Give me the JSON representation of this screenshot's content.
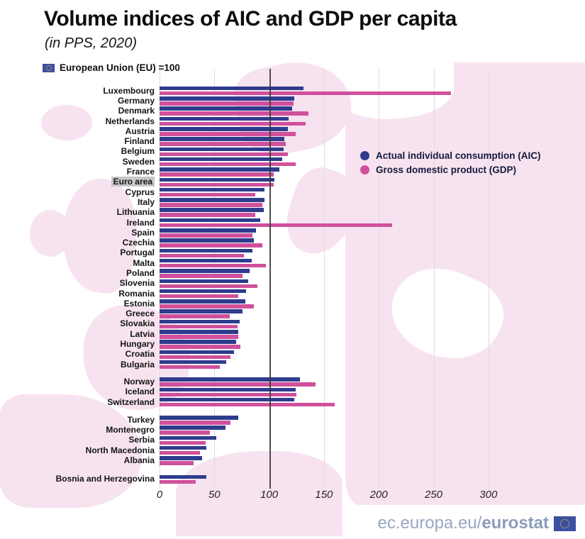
{
  "title": "Volume indices of AIC and GDP per capita",
  "subtitle": "(in PPS, 2020)",
  "eu_note": "European Union (EU) =100",
  "footer": {
    "url_prefix": "ec.europa.eu/",
    "url_bold": "eurostat"
  },
  "colors": {
    "aic_bar": "#2e3c8d",
    "gdp_bar": "#d0509c",
    "grid_light": "#dddcdc",
    "grid_dark_100": "#3a3a3a",
    "euro_area_highlight": "#c7c7c7",
    "map_pink": "#f7e3ef",
    "flag_blue": "#3c4fa2",
    "flag_star_gold": "#ffd617",
    "footer_text": "#99a7c1"
  },
  "chart_data": {
    "type": "bar",
    "orientation": "horizontal",
    "title": "Volume indices of AIC and GDP per capita",
    "subtitle": "(in PPS, 2020)",
    "note": "European Union (EU) =100",
    "x_ticks": [
      0,
      50,
      100,
      150,
      200,
      250,
      300
    ],
    "xlim": [
      0,
      330
    ],
    "grid": "vertical gridlines; emphasized dark line at 100",
    "legend_position": "middle-right",
    "series": [
      {
        "name": "Actual individual consumption (AIC)",
        "color": "#2e3c8d"
      },
      {
        "name": "Gross domestic product (GDP)",
        "color": "#d0509c"
      }
    ],
    "groups": [
      {
        "name": "eu-members-and-euro-area",
        "gap_before": 0,
        "rows": [
          {
            "label": "Luxembourg",
            "aic": 131,
            "gdp": 266
          },
          {
            "label": "Germany",
            "aic": 123,
            "gdp": 122
          },
          {
            "label": "Denmark",
            "aic": 121,
            "gdp": 136
          },
          {
            "label": "Netherlands",
            "aic": 118,
            "gdp": 133
          },
          {
            "label": "Austria",
            "aic": 117,
            "gdp": 124
          },
          {
            "label": "Finland",
            "aic": 114,
            "gdp": 115
          },
          {
            "label": "Belgium",
            "aic": 113,
            "gdp": 117
          },
          {
            "label": "Sweden",
            "aic": 112,
            "gdp": 124
          },
          {
            "label": "France",
            "aic": 109,
            "gdp": 104
          },
          {
            "label": "Euro area",
            "aic": 105,
            "gdp": 104,
            "highlight": true
          },
          {
            "label": "Cyprus",
            "aic": 96,
            "gdp": 87
          },
          {
            "label": "Italy",
            "aic": 96,
            "gdp": 94
          },
          {
            "label": "Lithuania",
            "aic": 95,
            "gdp": 87
          },
          {
            "label": "Ireland",
            "aic": 92,
            "gdp": 212
          },
          {
            "label": "Spain",
            "aic": 88,
            "gdp": 85
          },
          {
            "label": "Czechia",
            "aic": 86,
            "gdp": 94
          },
          {
            "label": "Portugal",
            "aic": 85,
            "gdp": 77
          },
          {
            "label": "Malta",
            "aic": 84,
            "gdp": 97
          },
          {
            "label": "Poland",
            "aic": 82,
            "gdp": 76
          },
          {
            "label": "Slovenia",
            "aic": 81,
            "gdp": 89
          },
          {
            "label": "Romania",
            "aic": 79,
            "gdp": 72
          },
          {
            "label": "Estonia",
            "aic": 78,
            "gdp": 86
          },
          {
            "label": "Greece",
            "aic": 76,
            "gdp": 64
          },
          {
            "label": "Slovakia",
            "aic": 73,
            "gdp": 71
          },
          {
            "label": "Latvia",
            "aic": 72,
            "gdp": 72
          },
          {
            "label": "Hungary",
            "aic": 70,
            "gdp": 74
          },
          {
            "label": "Croatia",
            "aic": 68,
            "gdp": 65
          },
          {
            "label": "Bulgaria",
            "aic": 61,
            "gdp": 55
          }
        ]
      },
      {
        "name": "efta-countries",
        "gap_before": 10,
        "rows": [
          {
            "label": "Norway",
            "aic": 128,
            "gdp": 142
          },
          {
            "label": "Iceland",
            "aic": 124,
            "gdp": 125
          },
          {
            "label": "Switzerland",
            "aic": 123,
            "gdp": 160
          }
        ]
      },
      {
        "name": "candidate-countries",
        "gap_before": 11,
        "rows": [
          {
            "label": "Turkey",
            "aic": 72,
            "gdp": 65
          },
          {
            "label": "Montenegro",
            "aic": 60,
            "gdp": 46
          },
          {
            "label": "Serbia",
            "aic": 52,
            "gdp": 42
          },
          {
            "label": "North Macedonia",
            "aic": 43,
            "gdp": 37
          },
          {
            "label": "Albania",
            "aic": 39,
            "gdp": 31
          }
        ]
      },
      {
        "name": "potential-candidates",
        "gap_before": 12,
        "rows": [
          {
            "label": "Bosnia and Herzegovina",
            "aic": 43,
            "gdp": 33
          }
        ]
      }
    ]
  }
}
